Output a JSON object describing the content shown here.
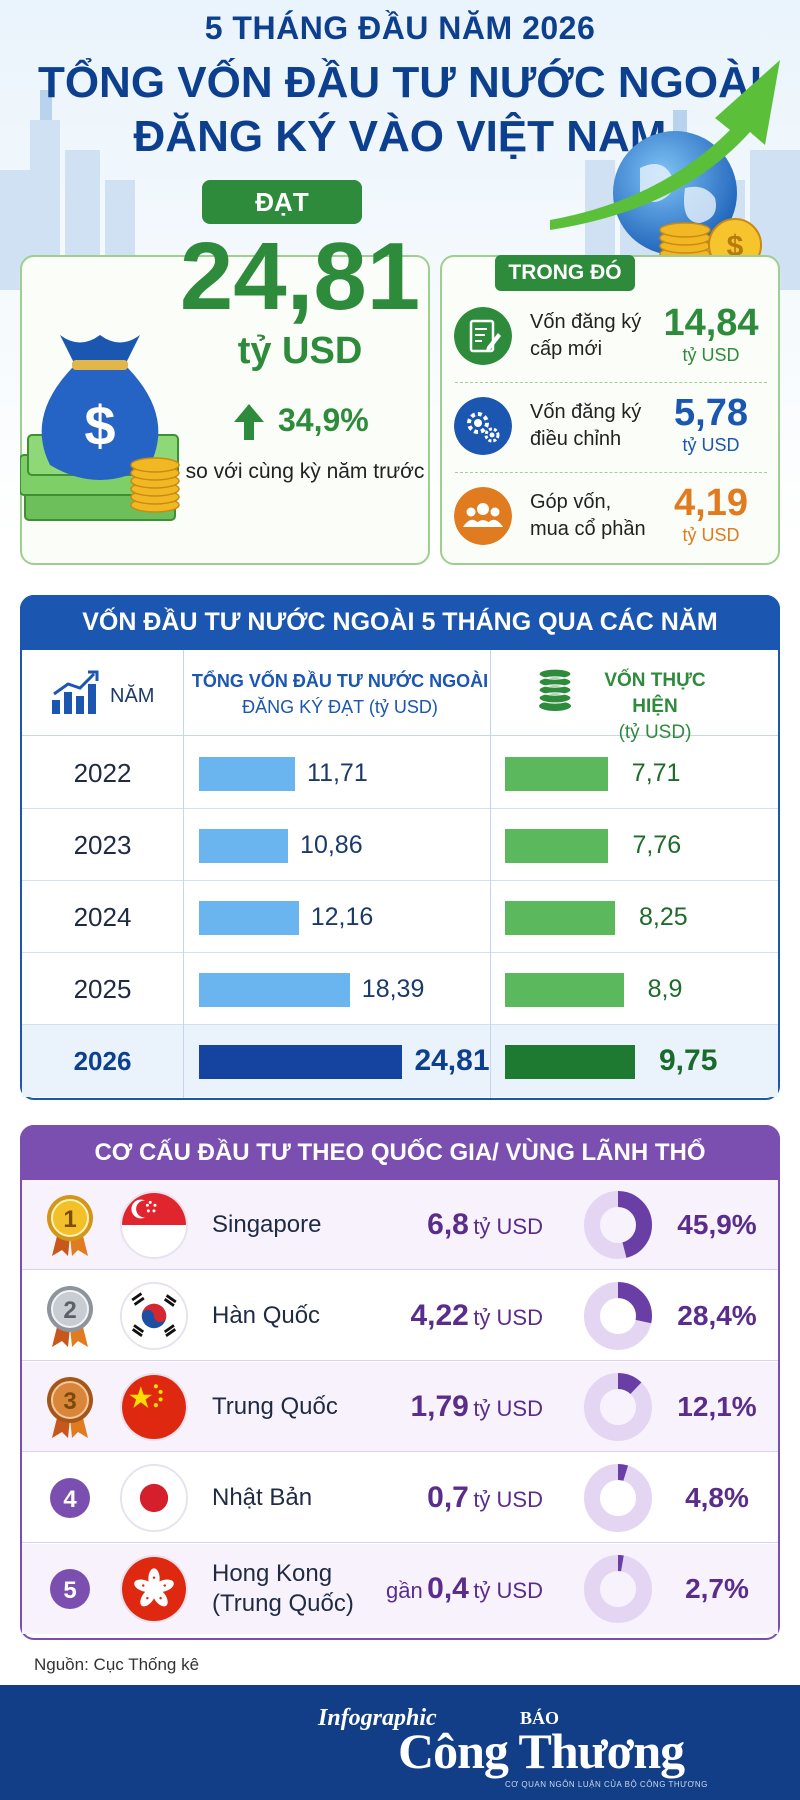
{
  "header": {
    "line1": "5 THÁNG ĐẦU NĂM 2026",
    "line2": "TỔNG VỐN ĐẦU TƯ NƯỚC NGOÀI",
    "line3": "ĐĂNG KÝ VÀO VIỆT NAM"
  },
  "total": {
    "badge": "ĐẠT",
    "value": "24,81",
    "unit": "tỷ USD",
    "growth": "34,9%",
    "growth_note": "so với cùng kỳ năm trước"
  },
  "breakdown": {
    "badge": "TRONG ĐÓ",
    "items": [
      {
        "label_line1": "Vốn đăng ký",
        "label_line2": "cấp mới",
        "value": "14,84",
        "unit": "tỷ USD",
        "color": "#2e8b3c",
        "icon": "document-pen-icon"
      },
      {
        "label_line1": "Vốn đăng ký",
        "label_line2": "điều chỉnh",
        "value": "5,78",
        "unit": "tỷ USD",
        "color": "#1b56b0",
        "icon": "gears-icon"
      },
      {
        "label_line1": "Góp vốn,",
        "label_line2": "mua cổ phần",
        "value": "4,19",
        "unit": "tỷ USD",
        "color": "#e07b1f",
        "icon": "people-group-icon"
      }
    ]
  },
  "years_table": {
    "title": "VỐN ĐẦU TƯ NƯỚC NGOÀI 5 THÁNG QUA CÁC NĂM",
    "col_year": "NĂM",
    "col1_line1": "TỔNG VỐN ĐẦU TƯ NƯỚC NGOÀI",
    "col1_line2": "ĐĂNG KÝ ĐẠT (tỷ USD)",
    "col2_line1": "VỐN THỰC HIỆN",
    "col2_line2": "(tỷ USD)"
  },
  "countries_table": {
    "title": "CƠ CẤU ĐẦU TƯ THEO QUỐC GIA/ VÙNG LÃNH THỔ",
    "rows": [
      {
        "rank": "1",
        "name": "Singapore",
        "name2": "",
        "prefix": "",
        "amount": "6,8",
        "unit": "tỷ USD",
        "pct_label": "45,9%",
        "pct": 45.9,
        "flag": "singapore-flag"
      },
      {
        "rank": "2",
        "name": "Hàn Quốc",
        "name2": "",
        "prefix": "",
        "amount": "4,22",
        "unit": "tỷ USD",
        "pct_label": "28,4%",
        "pct": 28.4,
        "flag": "korea-flag"
      },
      {
        "rank": "3",
        "name": "Trung Quốc",
        "name2": "",
        "prefix": "",
        "amount": "1,79",
        "unit": "tỷ USD",
        "pct_label": "12,1%",
        "pct": 12.1,
        "flag": "china-flag"
      },
      {
        "rank": "4",
        "name": "Nhật Bản",
        "name2": "",
        "prefix": "",
        "amount": "0,7",
        "unit": "tỷ USD",
        "pct_label": "4,8%",
        "pct": 4.8,
        "flag": "japan-flag"
      },
      {
        "rank": "5",
        "name": "Hong Kong",
        "name2": "(Trung Quốc)",
        "prefix": "gần",
        "amount": "0,4",
        "unit": "tỷ USD",
        "pct_label": "2,7%",
        "pct": 2.7,
        "flag": "hongkong-flag"
      }
    ]
  },
  "source": "Nguồn: Cục Thống kê",
  "footer": {
    "infographic": "Infographic",
    "bao": "BÁO",
    "brand": "Công Thương",
    "sub": "CƠ QUAN NGÔN LUẬN CỦA BỘ CÔNG THƯƠNG"
  },
  "colors": {
    "green": "#2e8b3c",
    "blue": "#1b56b0",
    "light_blue_bar": "#6ab4ef",
    "dark_blue_bar": "#1443a0",
    "light_green_bar": "#5cb85c",
    "dark_green_bar": "#1e7a30",
    "purple": "#7b4fb0"
  },
  "chart_data": {
    "type": "bar",
    "categories": [
      "2022",
      "2023",
      "2024",
      "2025",
      "2026"
    ],
    "series": [
      {
        "name": "TỔNG VỐN ĐẦU TƯ NƯỚC NGOÀI ĐĂNG KÝ ĐẠT (tỷ USD)",
        "values": [
          11.71,
          10.86,
          12.16,
          18.39,
          24.81
        ],
        "labels": [
          "11,71",
          "10,86",
          "12,16",
          "18,39",
          "24,81"
        ]
      },
      {
        "name": "VỐN THỰC HIỆN (tỷ USD)",
        "values": [
          7.71,
          7.76,
          8.25,
          8.9,
          9.75
        ],
        "labels": [
          "7,71",
          "7,76",
          "8,25",
          "8,9",
          "9,75"
        ]
      }
    ],
    "highlight_category": "2026",
    "orientation": "horizontal",
    "grid": false
  }
}
